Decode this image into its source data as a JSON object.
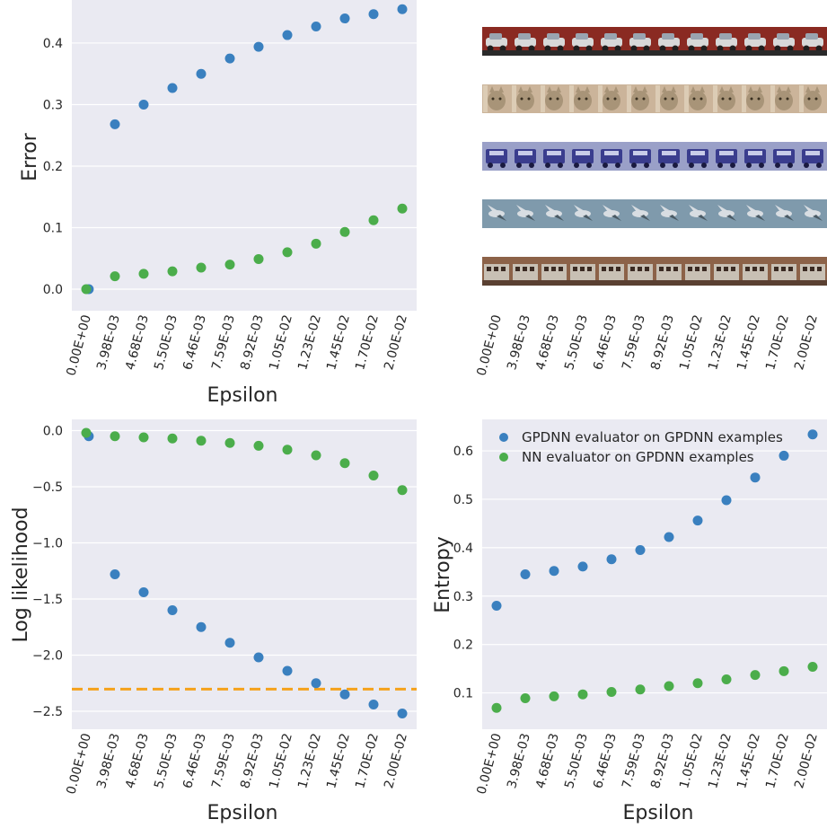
{
  "colors": {
    "blue": "#3a80bf",
    "green": "#4bad4b",
    "orange": "#f5a21b",
    "panel_bg": "#eaeaf2",
    "grid": "#ffffff"
  },
  "chart_data": [
    {
      "id": "error",
      "type": "scatter",
      "xlabel": "Epsilon",
      "ylabel": "Error",
      "x_tick_labels": [
        "0.00E+00",
        "3.98E-03",
        "4.68E-03",
        "5.50E-03",
        "6.46E-03",
        "7.59E-03",
        "8.92E-03",
        "1.05E-02",
        "1.23E-02",
        "1.45E-02",
        "1.70E-02",
        "2.00E-02"
      ],
      "ylim": [
        -0.035,
        0.47
      ],
      "yticks": [
        0.0,
        0.1,
        0.2,
        0.3,
        0.4
      ],
      "ytick_labels": [
        "0.0",
        "0.1",
        "0.2",
        "0.3",
        "0.4"
      ],
      "grid": true,
      "series": [
        {
          "color": "blue",
          "offset": 0.3,
          "values": [
            0.0,
            0.268,
            0.3,
            0.327,
            0.35,
            0.375,
            0.394,
            0.413,
            0.427,
            0.44,
            0.447,
            0.455
          ]
        },
        {
          "color": "green",
          "offset": 0,
          "values": [
            0.0,
            0.021,
            0.025,
            0.029,
            0.035,
            0.04,
            0.049,
            0.06,
            0.074,
            0.093,
            0.112,
            0.131
          ]
        }
      ]
    },
    {
      "id": "loglik",
      "type": "scatter",
      "xlabel": "Epsilon",
      "ylabel": "Log likelihood",
      "x_tick_labels": [
        "0.00E+00",
        "3.98E-03",
        "4.68E-03",
        "5.50E-03",
        "6.46E-03",
        "7.59E-03",
        "8.92E-03",
        "1.05E-02",
        "1.23E-02",
        "1.45E-02",
        "1.70E-02",
        "2.00E-02"
      ],
      "ylim": [
        -2.66,
        0.1
      ],
      "yticks": [
        0.0,
        -0.5,
        -1.0,
        -1.5,
        -2.0,
        -2.5
      ],
      "ytick_labels": [
        "0.0",
        "−0.5",
        "−1.0",
        "−1.5",
        "−2.0",
        "−2.5"
      ],
      "grid": true,
      "hline": {
        "y": -2.3026,
        "color": "orange",
        "style": "dashed"
      },
      "series": [
        {
          "color": "blue",
          "offset": 0.3,
          "values": [
            -0.05,
            -1.28,
            -1.44,
            -1.6,
            -1.75,
            -1.89,
            -2.02,
            -2.14,
            -2.25,
            -2.35,
            -2.44,
            -2.52
          ]
        },
        {
          "color": "green",
          "offset": 0,
          "values": [
            -0.02,
            -0.05,
            -0.06,
            -0.07,
            -0.09,
            -0.11,
            -0.135,
            -0.17,
            -0.22,
            -0.29,
            -0.4,
            -0.53
          ]
        }
      ]
    },
    {
      "id": "entropy",
      "type": "scatter",
      "xlabel": "Epsilon",
      "ylabel": "Entropy",
      "x_tick_labels": [
        "0.00E+00",
        "3.98E-03",
        "4.68E-03",
        "5.50E-03",
        "6.46E-03",
        "7.59E-03",
        "8.92E-03",
        "1.05E-02",
        "1.23E-02",
        "1.45E-02",
        "1.70E-02",
        "2.00E-02"
      ],
      "ylim": [
        0.025,
        0.665
      ],
      "yticks": [
        0.1,
        0.2,
        0.3,
        0.4,
        0.5,
        0.6
      ],
      "ytick_labels": [
        "0.1",
        "0.2",
        "0.3",
        "0.4",
        "0.5",
        "0.6"
      ],
      "grid": true,
      "legend": "top-left",
      "series": [
        {
          "name": "GPDNN evaluator on GPDNN examples",
          "color": "blue",
          "offset": 0,
          "values": [
            0.28,
            0.345,
            0.352,
            0.361,
            0.376,
            0.395,
            0.422,
            0.456,
            0.498,
            0.545,
            0.59,
            0.634
          ]
        },
        {
          "name": "NN evaluator on GPDNN examples",
          "color": "green",
          "offset": 0,
          "values": [
            0.069,
            0.089,
            0.093,
            0.097,
            0.102,
            0.107,
            0.114,
            0.12,
            0.128,
            0.137,
            0.145,
            0.154
          ]
        }
      ]
    }
  ],
  "image_strips": {
    "x_tick_labels": [
      "0.00E+00",
      "3.98E-03",
      "4.68E-03",
      "5.50E-03",
      "6.46E-03",
      "7.59E-03",
      "8.92E-03",
      "1.05E-02",
      "1.23E-02",
      "1.45E-02",
      "1.70E-02",
      "2.00E-02"
    ],
    "rows": [
      {
        "subject": "red-car",
        "bg": "#8a2a22",
        "fg": "#d8d8d8",
        "accent": "#1e1e1e"
      },
      {
        "subject": "cat",
        "bg": "#cbb49a",
        "fg": "#a89478",
        "accent": "#e8dcc8"
      },
      {
        "subject": "blue-truck",
        "bg": "#9aa0c8",
        "fg": "#3a3d8e",
        "accent": "#1a1a40"
      },
      {
        "subject": "bird",
        "bg": "#7f9aac",
        "fg": "#d8dde2",
        "accent": "#4a5a64"
      },
      {
        "subject": "train",
        "bg": "#8c6248",
        "fg": "#c8c0b4",
        "accent": "#3a2a22"
      }
    ]
  }
}
